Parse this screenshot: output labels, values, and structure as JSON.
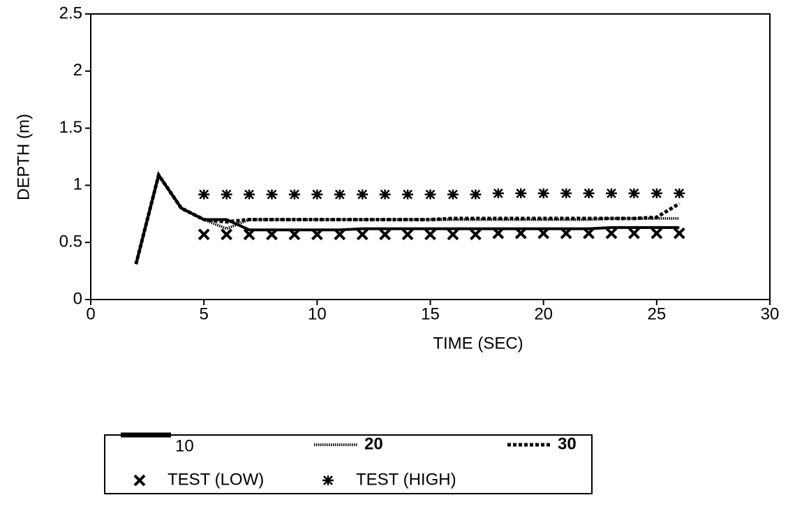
{
  "chart_data": {
    "type": "line",
    "x_label": "TIME (SEC)",
    "y_label": "DEPTH (m)",
    "x": [
      2,
      3,
      4,
      5,
      6,
      7,
      8,
      9,
      10,
      11,
      12,
      13,
      14,
      15,
      16,
      17,
      18,
      19,
      20,
      21,
      22,
      23,
      24,
      25,
      26
    ],
    "series": [
      {
        "name": "10",
        "color": "#000000",
        "style": "solid",
        "values": [
          0.31,
          1.09,
          0.8,
          0.7,
          0.7,
          0.61,
          0.61,
          0.61,
          0.61,
          0.61,
          0.62,
          0.62,
          0.62,
          0.62,
          0.62,
          0.62,
          0.62,
          0.62,
          0.62,
          0.62,
          0.62,
          0.63,
          0.63,
          0.63,
          0.63
        ]
      },
      {
        "name": "20",
        "color": "#000000",
        "style": "dotted",
        "values": [
          0.31,
          1.09,
          0.8,
          0.7,
          0.62,
          0.7,
          0.7,
          0.7,
          0.7,
          0.7,
          0.7,
          0.7,
          0.7,
          0.7,
          0.7,
          0.7,
          0.7,
          0.7,
          0.7,
          0.7,
          0.7,
          0.71,
          0.71,
          0.71,
          0.71
        ]
      },
      {
        "name": "30",
        "color": "#000000",
        "style": "dashed",
        "values": [
          0.31,
          1.09,
          0.8,
          0.7,
          0.68,
          0.7,
          0.7,
          0.7,
          0.7,
          0.7,
          0.7,
          0.7,
          0.7,
          0.7,
          0.71,
          0.71,
          0.71,
          0.71,
          0.71,
          0.71,
          0.71,
          0.71,
          0.71,
          0.72,
          0.84
        ]
      },
      {
        "name": "TEST (LOW)",
        "color": "#000000",
        "style": "marker",
        "marker": "x",
        "values": [
          null,
          null,
          null,
          0.57,
          0.57,
          0.57,
          0.57,
          0.57,
          0.57,
          0.57,
          0.57,
          0.57,
          0.57,
          0.57,
          0.57,
          0.57,
          0.58,
          0.58,
          0.58,
          0.58,
          0.58,
          0.58,
          0.58,
          0.58,
          0.58
        ]
      },
      {
        "name": "TEST (HIGH)",
        "color": "#000000",
        "style": "marker",
        "marker": "asterisk",
        "values": [
          null,
          null,
          null,
          0.92,
          0.92,
          0.92,
          0.92,
          0.92,
          0.92,
          0.92,
          0.92,
          0.92,
          0.92,
          0.92,
          0.92,
          0.92,
          0.93,
          0.93,
          0.93,
          0.93,
          0.93,
          0.93,
          0.93,
          0.93,
          0.93
        ]
      }
    ],
    "xlim": [
      0,
      30
    ],
    "xticks": [
      0,
      5,
      10,
      15,
      20,
      25,
      30
    ],
    "ylim": [
      0,
      2.5
    ],
    "yticks": [
      0,
      0.5,
      1,
      1.5,
      2,
      2.5
    ]
  }
}
